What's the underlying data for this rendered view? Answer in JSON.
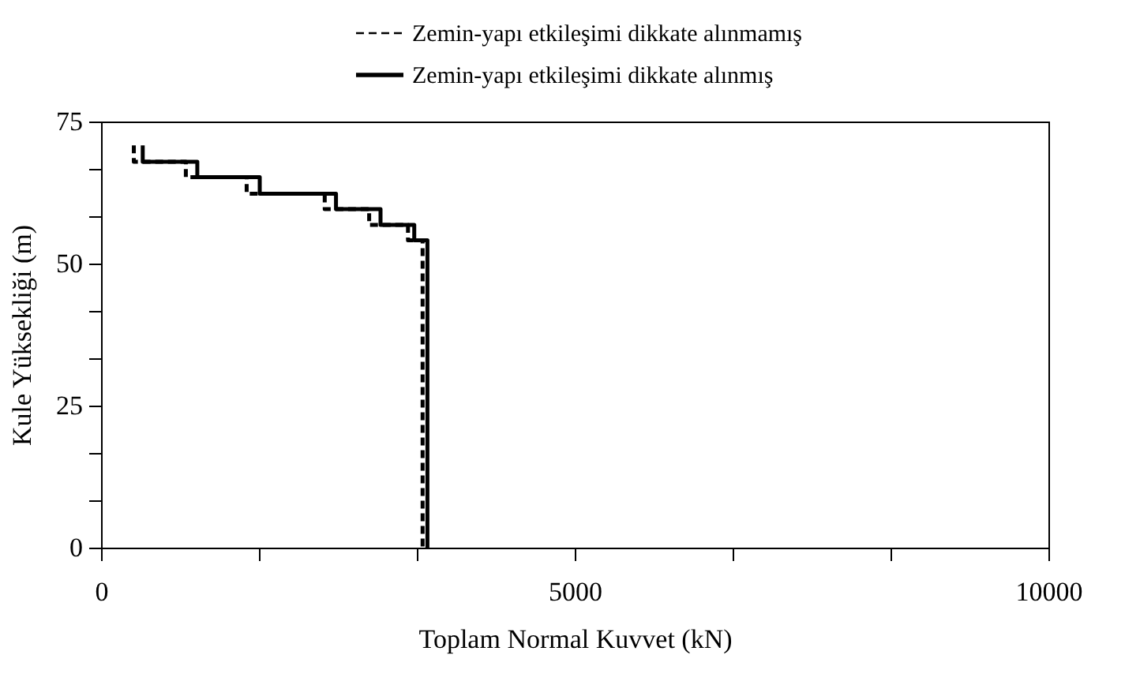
{
  "chart_data": {
    "type": "line",
    "xlabel": "Toplam Normal Kuvvet (kN)",
    "ylabel": "Kule Yüksekliği (m)",
    "xlim": [
      0,
      10000
    ],
    "ylim": [
      0,
      75
    ],
    "xticks": [
      0,
      {
        "value": 1666.7,
        "label": null
      },
      {
        "value": 3333.3,
        "label": null
      },
      5000,
      {
        "value": 6666.7,
        "label": null
      },
      {
        "value": 8333.3,
        "label": null
      },
      10000
    ],
    "yticks": [
      0,
      {
        "value": 8.33,
        "label": null
      },
      {
        "value": 16.67,
        "label": null
      },
      25,
      {
        "value": 33.33,
        "label": null
      },
      {
        "value": 41.67,
        "label": null
      },
      50,
      {
        "value": 58.33,
        "label": null
      },
      {
        "value": 66.67,
        "label": null
      },
      75
    ],
    "grid": false,
    "legend": "top",
    "marker": "none",
    "series": [
      {
        "name": "Zemin-yapı etkileşimi dikkate alınmamış",
        "color": "#000000",
        "line_style": "dashed",
        "x": [
          346,
          346,
          895,
          895,
          1537,
          1537,
          2361,
          2361,
          2830,
          2830,
          3240,
          3240,
          3394,
          3394
        ],
        "values": [
          70.8,
          67.9,
          67.9,
          65.2,
          65.2,
          62.3,
          62.3,
          59.6,
          59.6,
          56.8,
          56.8,
          54.1,
          54.1,
          0
        ]
      },
      {
        "name": "Zemin-yapı etkileşimi  dikkate alınmış",
        "color": "#000000",
        "line_style": "solid",
        "x": [
          440,
          440,
          1016,
          1016,
          1675,
          1675,
          2480,
          2480,
          2950,
          2950,
          3306,
          3306,
          3445,
          3445
        ],
        "values": [
          70.8,
          67.9,
          67.9,
          65.2,
          65.2,
          62.3,
          62.3,
          59.6,
          59.6,
          56.8,
          56.8,
          54.1,
          54.1,
          0
        ]
      }
    ]
  }
}
